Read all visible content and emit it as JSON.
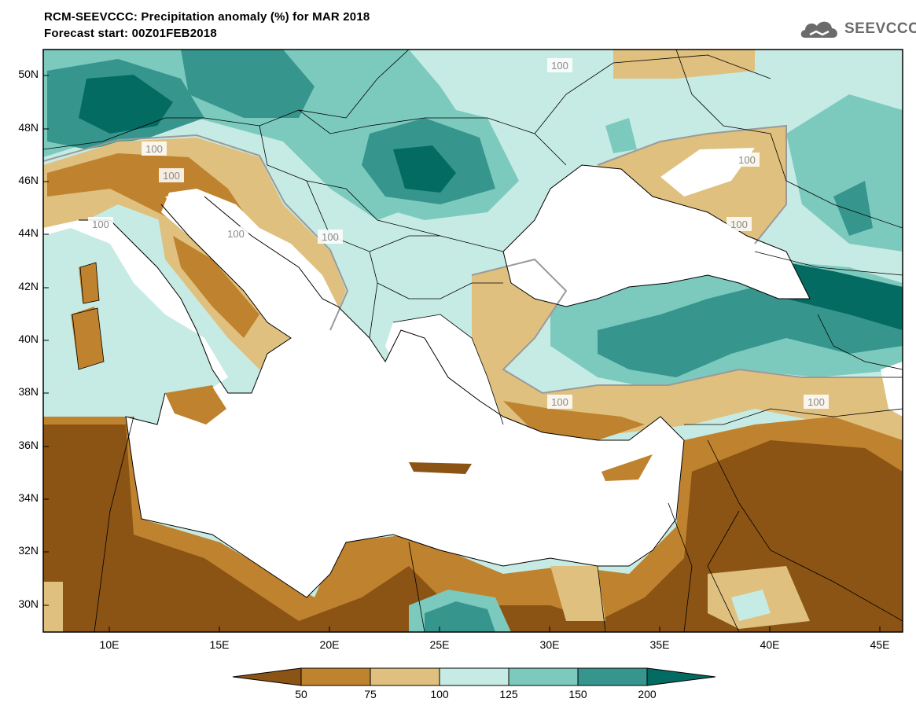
{
  "header": {
    "title_line1": "RCM-SEEVCCC: Precipitation anomaly (%) for MAR 2018",
    "title_line2": "Forecast start: 00Z01FEB2018",
    "logo_text": "SEEVCCC"
  },
  "axes": {
    "lat_labels": [
      "50N",
      "48N",
      "46N",
      "44N",
      "42N",
      "40N",
      "38N",
      "36N",
      "34N",
      "32N",
      "30N"
    ],
    "lon_labels": [
      "10E",
      "15E",
      "20E",
      "25E",
      "30E",
      "35E",
      "40E",
      "45E"
    ]
  },
  "contour_labels": [
    "100",
    "100",
    "100",
    "100",
    "100",
    "100",
    "100",
    "100",
    "100",
    "100"
  ],
  "colorbar": {
    "ticks": [
      "50",
      "75",
      "100",
      "125",
      "150",
      "200"
    ],
    "colors": [
      "#8b5414",
      "#bf822e",
      "#dfc07e",
      "#c6ebe4",
      "#7ccabe",
      "#36968e",
      "#046b62"
    ]
  }
}
